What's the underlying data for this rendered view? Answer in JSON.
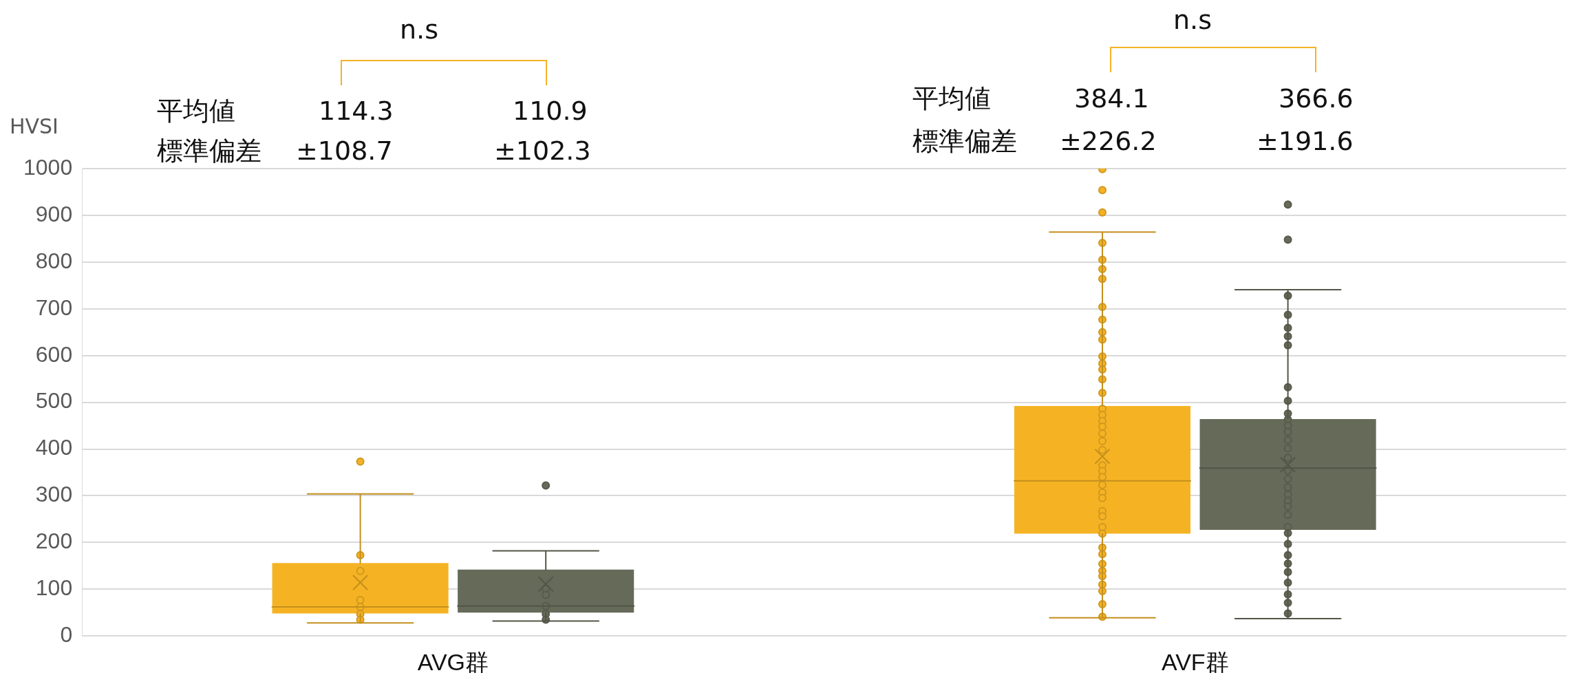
{
  "chart_data": {
    "type": "box",
    "ylabel": "HVSI",
    "categories": [
      "AVG群",
      "AVF群"
    ],
    "ylim": [
      0,
      1000
    ],
    "yticks": [
      0,
      100,
      200,
      300,
      400,
      500,
      600,
      700,
      800,
      900,
      1000
    ],
    "grid": "y",
    "legend": false,
    "annotations": [
      "n.s",
      "n.s",
      "平均値",
      "標準偏差",
      "114.3",
      "±108.7",
      "110.9",
      "±102.3",
      "平均値",
      "標準偏差",
      "384.1",
      "±226.2",
      "366.6",
      "±191.6"
    ],
    "series": [
      {
        "type": "box",
        "color": "#f5b324",
        "boxes": [
          {
            "low": 28,
            "q1": 48,
            "median": 62,
            "q3": 156,
            "high": 304,
            "mean": 114.3,
            "outliers": [
              373
            ]
          },
          {
            "low": 39,
            "q1": 219,
            "median": 332,
            "q3": 492,
            "high": 864,
            "mean": 384.1,
            "outliers": [
              999,
              954,
              906
            ]
          }
        ]
      },
      {
        "type": "box",
        "color": "#666a59",
        "boxes": [
          {
            "low": 32,
            "q1": 50,
            "median": 64,
            "q3": 142,
            "high": 182,
            "mean": 110.9,
            "outliers": [
              322
            ]
          },
          {
            "low": 37,
            "q1": 227,
            "median": 359,
            "q3": 464,
            "high": 741,
            "mean": 366.6,
            "outliers": [
              923,
              848
            ]
          }
        ]
      },
      {
        "type": "scatter",
        "color": "#f5b324",
        "marker": "circle",
        "x": [
          "AVG群",
          "AVG群",
          "AVG群",
          "AVG群",
          "AVG群",
          "AVG群",
          "AVF群",
          "AVF群",
          "AVF群",
          "AVF群",
          "AVF群",
          "AVF群",
          "AVF群",
          "AVF群",
          "AVF群",
          "AVF群",
          "AVF群",
          "AVF群",
          "AVF群",
          "AVF群",
          "AVF群",
          "AVF群",
          "AVF群",
          "AVF群",
          "AVF群",
          "AVF群",
          "AVF群",
          "AVF群",
          "AVF群",
          "AVF群",
          "AVF群",
          "AVF群",
          "AVF群",
          "AVF群",
          "AVF群",
          "AVF群",
          "AVF群",
          "AVF群",
          "AVF群",
          "AVF群",
          "AVF群",
          "AVF群",
          "AVF群",
          "AVF群",
          "AVF群"
        ],
        "values": [
          173,
          139,
          77,
          62,
          47,
          35,
          841,
          805,
          785,
          764,
          704,
          677,
          650,
          634,
          598,
          583,
          570,
          549,
          520,
          486,
          473,
          460,
          448,
          433,
          417,
          398,
          365,
          353,
          340,
          323,
          307,
          295,
          267,
          256,
          233,
          219,
          189,
          175,
          154,
          139,
          128,
          110,
          96,
          68,
          41
        ]
      },
      {
        "type": "scatter",
        "color": "#666a59",
        "marker": "circle",
        "x": [
          "AVG群",
          "AVG群",
          "AVG群",
          "AVG群",
          "AVG群",
          "AVF群",
          "AVF群",
          "AVF群",
          "AVF群",
          "AVF群",
          "AVF群",
          "AVF群",
          "AVF群",
          "AVF群",
          "AVF群",
          "AVF群",
          "AVF群",
          "AVF群",
          "AVF群",
          "AVF群",
          "AVF群",
          "AVF群",
          "AVF群",
          "AVF群",
          "AVF群",
          "AVF群",
          "AVF群",
          "AVF群",
          "AVF群",
          "AVF群",
          "AVF群",
          "AVF群",
          "AVF群",
          "AVF群",
          "AVF群",
          "AVF群"
        ],
        "values": [
          101,
          88,
          64,
          47,
          35,
          728,
          687,
          659,
          641,
          622,
          532,
          503,
          476,
          463,
          450,
          437,
          419,
          401,
          381,
          354,
          336,
          318,
          303,
          289,
          277,
          259,
          233,
          220,
          197,
          173,
          155,
          137,
          114,
          89,
          71,
          48
        ]
      }
    ]
  }
}
